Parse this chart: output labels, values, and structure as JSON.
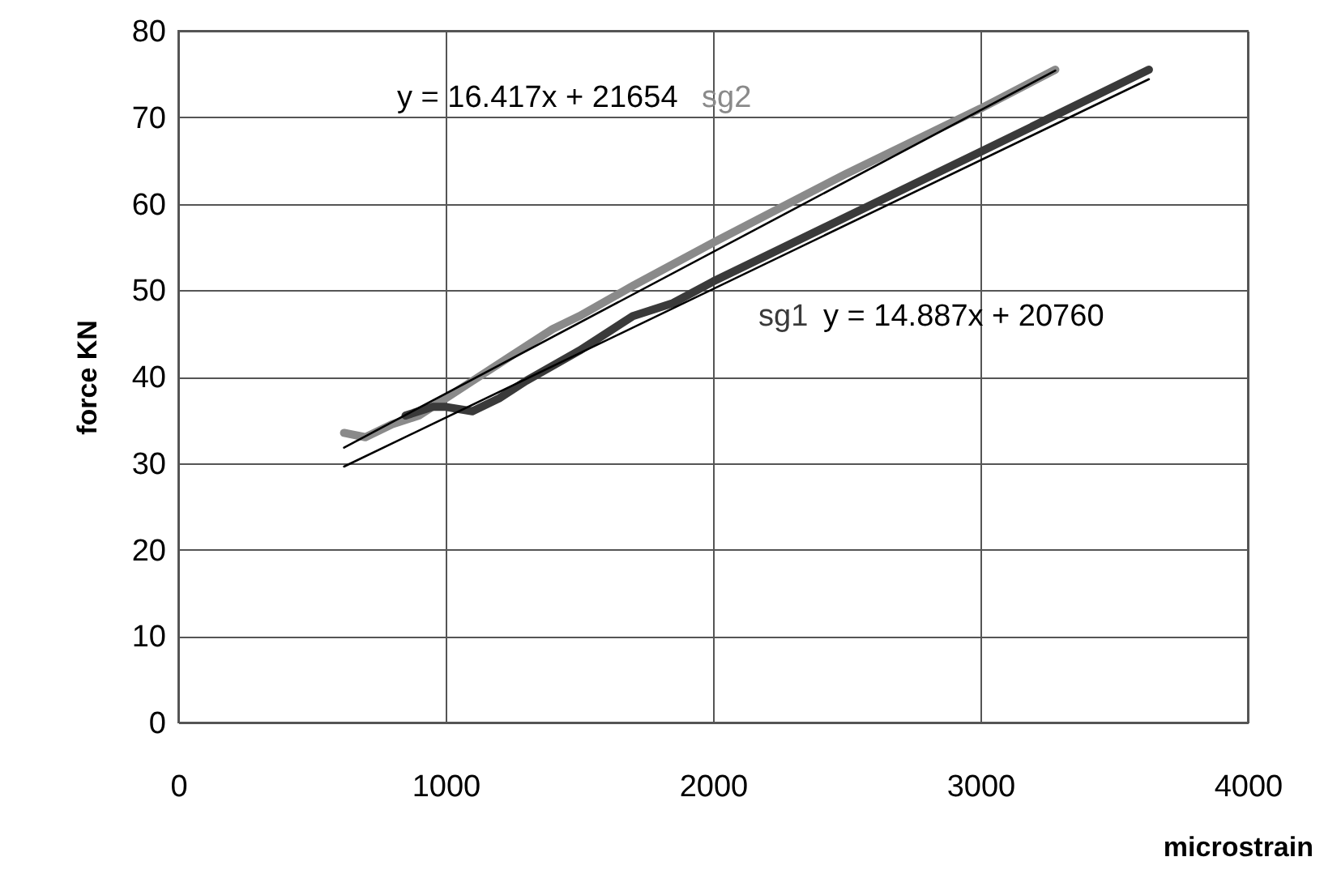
{
  "chart_data": {
    "type": "line",
    "xlabel": "microstrain",
    "ylabel": "force KN",
    "xlim": [
      0,
      4000
    ],
    "xticks": [
      0,
      1000,
      2000,
      3000,
      4000
    ],
    "ylim": [
      0,
      80
    ],
    "yticks": [
      0,
      10,
      20,
      30,
      40,
      50,
      60,
      70,
      80
    ],
    "grid": true,
    "marker": "none",
    "line_style": "solid",
    "series": [
      {
        "name": "sg2",
        "color": "#8a8a8a",
        "x": [
          620,
          700,
          800,
          900,
          1000,
          1100,
          1250,
          1400,
          1500,
          1700,
          2000,
          2500,
          3000,
          3280
        ],
        "values": [
          33.5,
          33,
          34.5,
          35.5,
          37.5,
          39.5,
          42.5,
          45.5,
          47,
          50.5,
          55.5,
          63.5,
          71,
          75.5
        ]
      },
      {
        "name": "sg1",
        "color": "#3a3a3a",
        "x": [
          850,
          950,
          1000,
          1100,
          1200,
          1300,
          1500,
          1700,
          1850,
          2000,
          2500,
          3000,
          3630
        ],
        "values": [
          35.5,
          36.5,
          36.5,
          36,
          37.5,
          39.5,
          43,
          47,
          48.5,
          51,
          58.5,
          66,
          75.5
        ]
      },
      {
        "type": "line",
        "color": "#000000",
        "x": [
          620,
          3280
        ],
        "values": [
          31.8,
          75.4
        ]
      },
      {
        "type": "line",
        "color": "#000000",
        "x": [
          620,
          3630
        ],
        "values": [
          29.6,
          74.4
        ]
      }
    ],
    "annotations": [
      "y = 16.417x + 21654",
      "y = 14.887x + 20760"
    ]
  }
}
